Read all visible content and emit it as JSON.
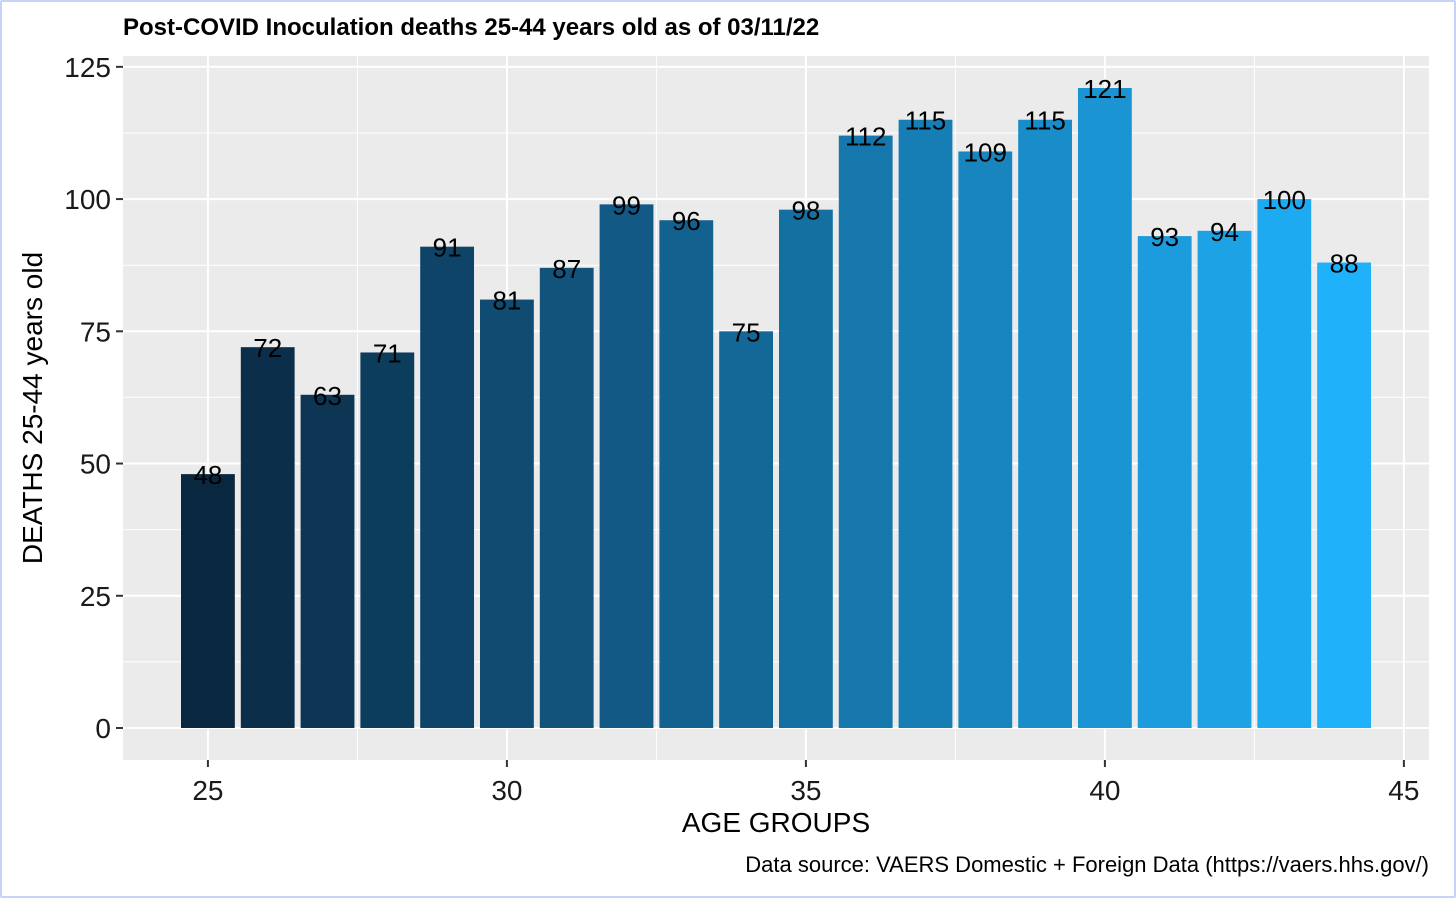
{
  "colors": {
    "panel_background": "#ebebeb",
    "grid_major": "#ffffff",
    "frame_border": "#c5d3f6",
    "bar_low": "#0a2740",
    "bar_high": "#1fb1fa"
  },
  "chart_data": {
    "type": "bar",
    "title": "Post-COVID Inoculation deaths 25-44 years old as of 03/11/22",
    "xlabel": "AGE GROUPS",
    "ylabel": "DEATHS 25-44 years old",
    "caption": "Data source: VAERS Domestic + Foreign Data (https://vaers.hhs.gov/)",
    "x": [
      25,
      26,
      27,
      28,
      29,
      30,
      31,
      32,
      33,
      34,
      35,
      36,
      37,
      38,
      39,
      40,
      41,
      42,
      43,
      44
    ],
    "values": [
      48,
      72,
      63,
      71,
      91,
      81,
      87,
      99,
      96,
      75,
      98,
      112,
      115,
      109,
      115,
      121,
      93,
      94,
      100,
      88
    ],
    "xlim": [
      23.58,
      45.42
    ],
    "ylim": [
      -6.05,
      127.05
    ],
    "x_ticks": [
      "25",
      "30",
      "35",
      "40",
      "45"
    ],
    "x_tick_values": [
      25,
      30,
      35,
      40,
      45
    ],
    "y_ticks": [
      "0",
      "25",
      "50",
      "75",
      "100",
      "125"
    ],
    "y_tick_values": [
      0,
      25,
      50,
      75,
      100,
      125
    ],
    "grid": true,
    "legend": "none"
  }
}
